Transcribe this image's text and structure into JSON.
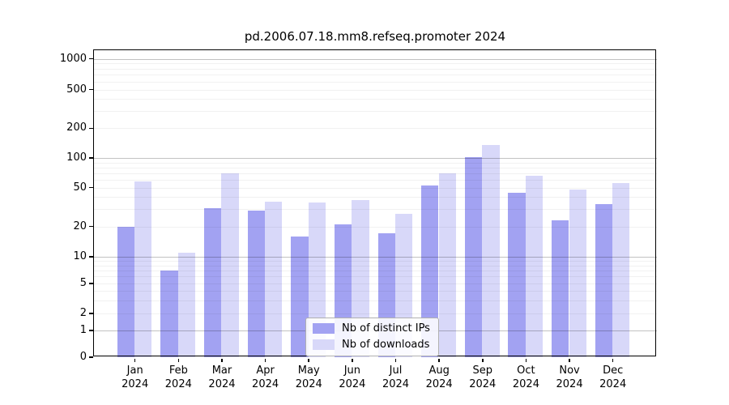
{
  "title": "pd.2006.07.18.mm8.refseq.promoter 2024",
  "chart_data": {
    "type": "bar",
    "title": "pd.2006.07.18.mm8.refseq.promoter 2024",
    "categories": [
      "Jan",
      "Feb",
      "Mar",
      "Apr",
      "May",
      "Jun",
      "Jul",
      "Aug",
      "Sep",
      "Oct",
      "Nov",
      "Dec"
    ],
    "category_year": "2024",
    "series": [
      {
        "name": "Nb of distinct IPs",
        "color": "#a2a2f2",
        "values": [
          20,
          7,
          31,
          29,
          16,
          21,
          17,
          52,
          102,
          44,
          23,
          34
        ]
      },
      {
        "name": "Nb of downloads",
        "color": "#d8d8f9",
        "values": [
          58,
          11,
          70,
          36,
          35,
          37,
          27,
          70,
          135,
          66,
          48,
          55
        ]
      }
    ],
    "xlabel": "",
    "ylabel": "",
    "yticks": [
      0,
      1,
      2,
      5,
      10,
      20,
      50,
      100,
      200,
      500,
      1000
    ],
    "ylim": [
      0,
      1000
    ],
    "yscale": "symlog",
    "grid": "horizontal: major lines at 1, 10, 100, 1000; faint minor log lines",
    "legend_position": "bottom-center",
    "frame_color": "#000000",
    "background_color": "#ffffff"
  }
}
